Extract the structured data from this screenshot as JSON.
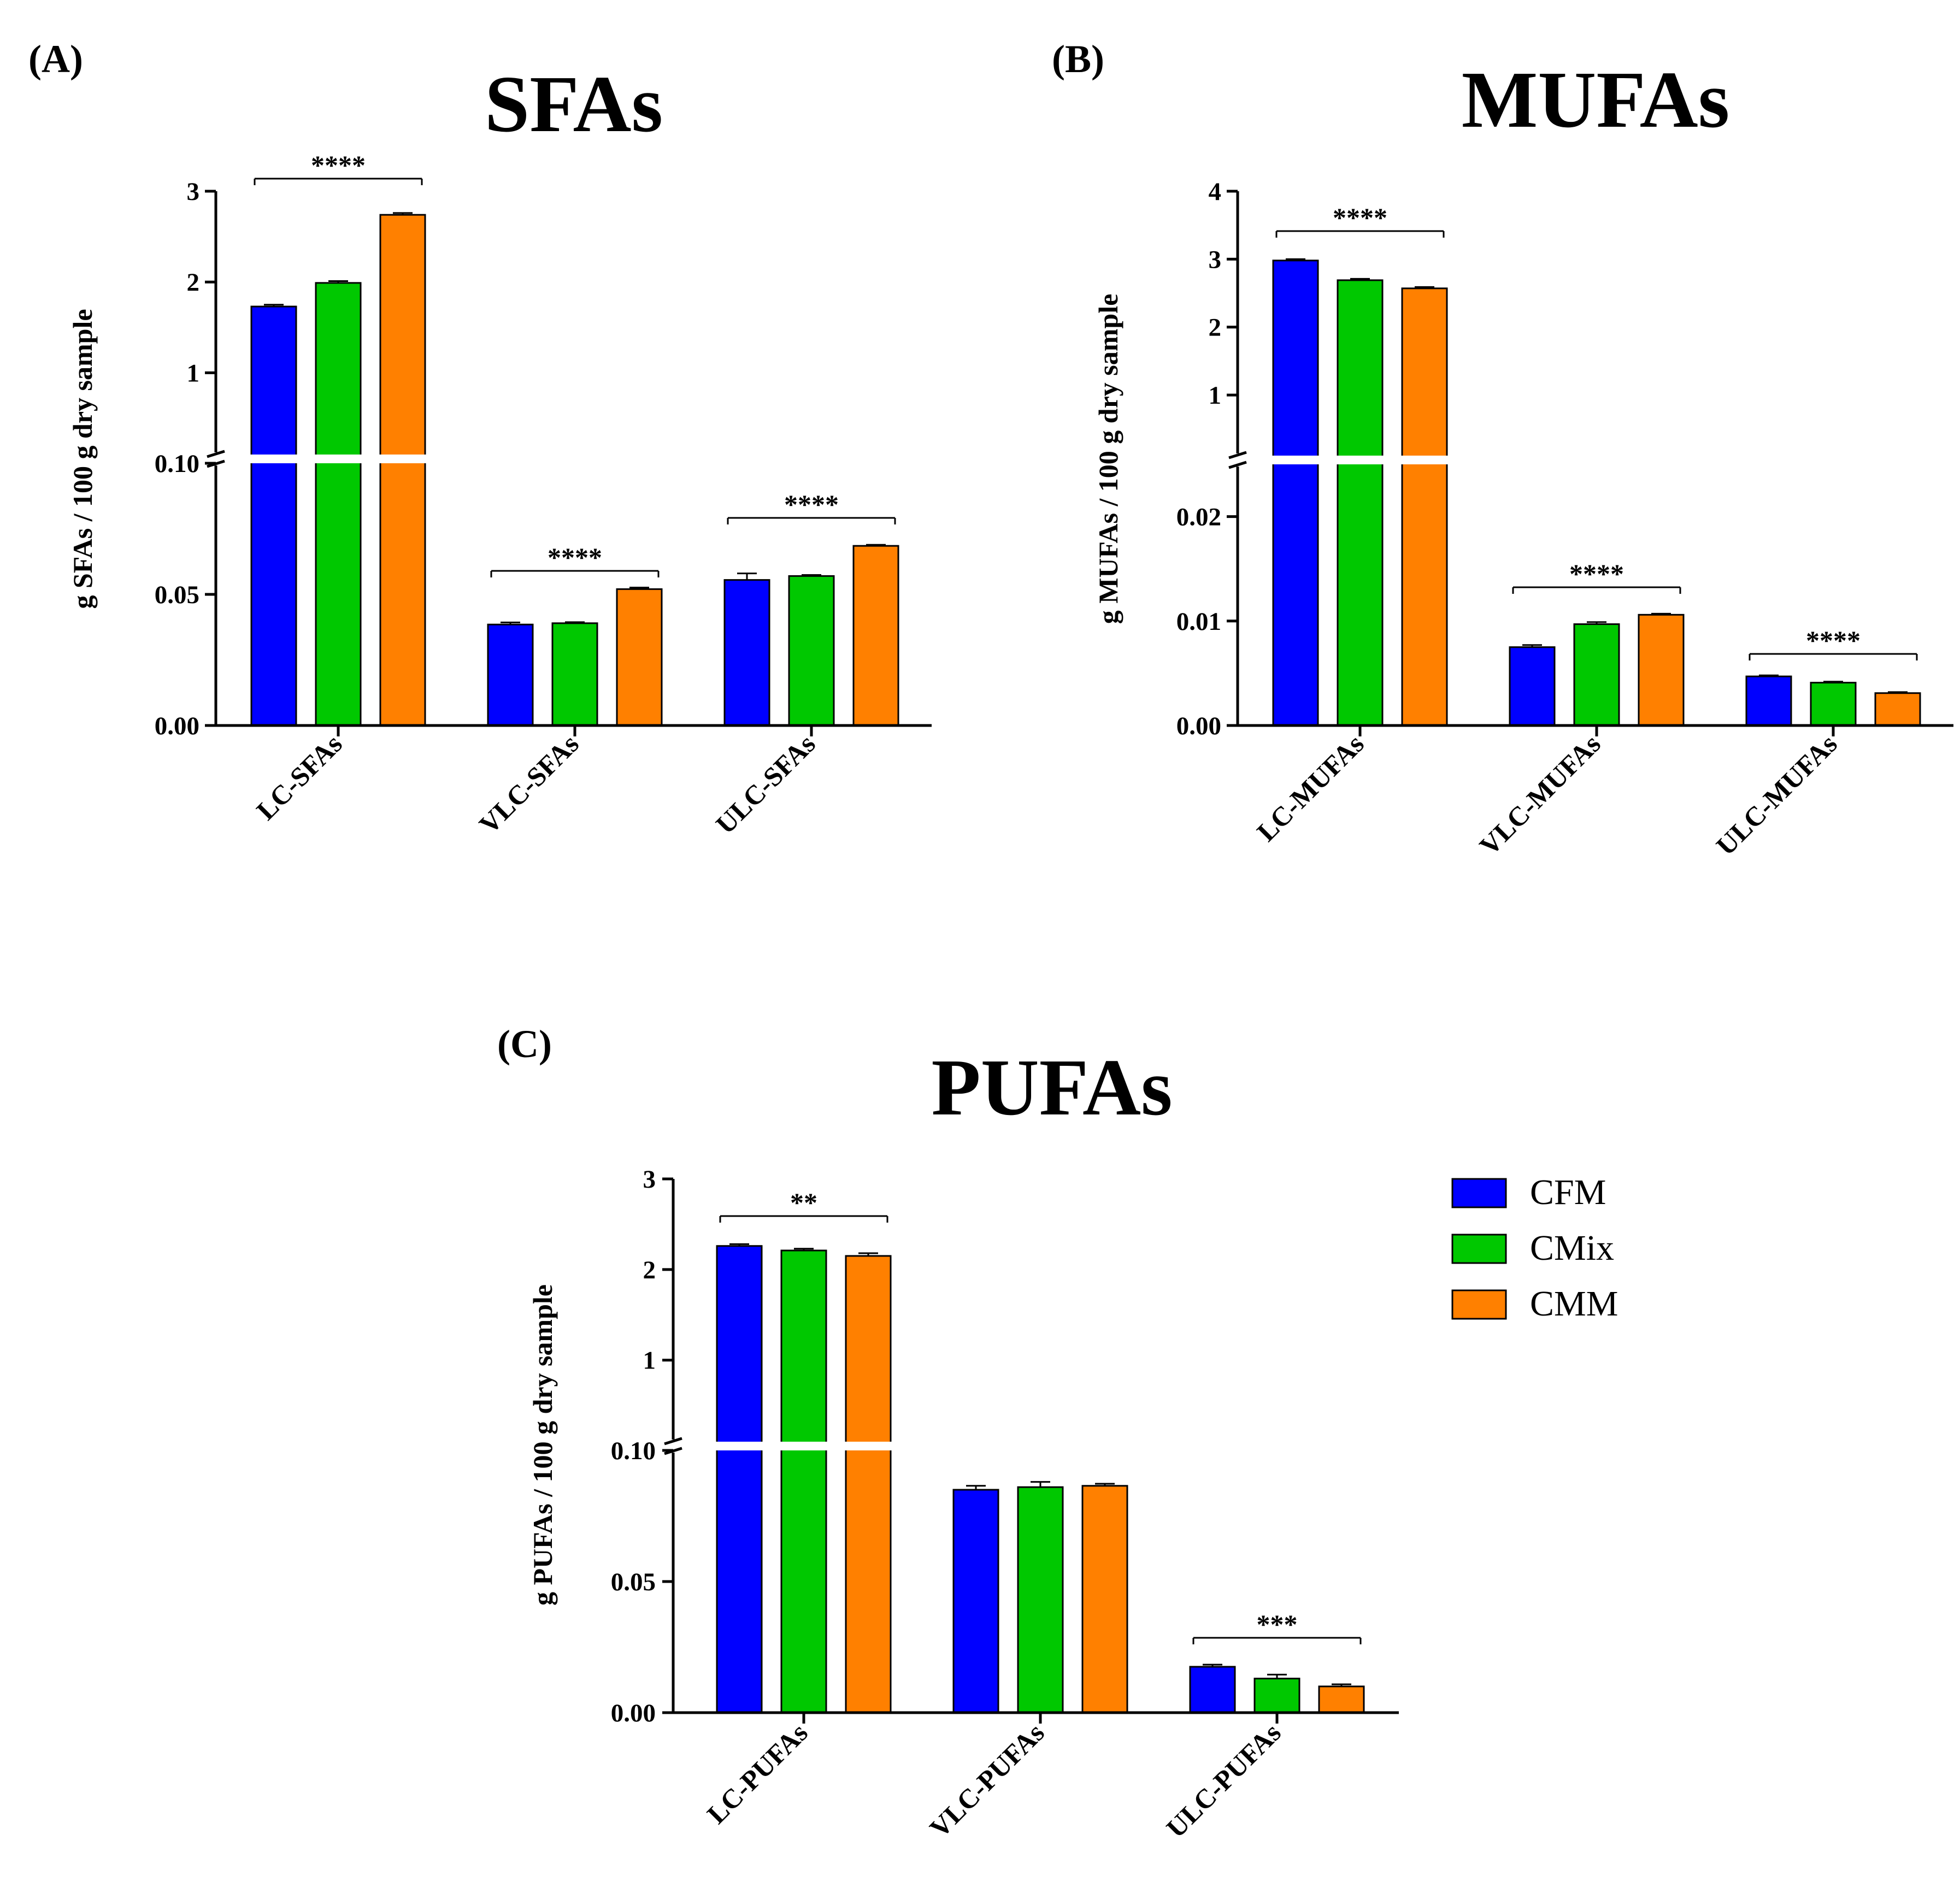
{
  "figure": {
    "legend": [
      {
        "name": "CFM",
        "color": "#0000ff"
      },
      {
        "name": "CMix",
        "color": "#00c800"
      },
      {
        "name": "CMM",
        "color": "#ff8000"
      }
    ]
  },
  "chart_data": [
    {
      "type": "bar",
      "panel": "(A)",
      "title": "SFAs",
      "ylabel": "g SFAs / 100 g dry sample",
      "xlabel": "",
      "categories": [
        "LC-SFAs",
        "VLC-SFAs",
        "ULC-SFAs"
      ],
      "series": [
        {
          "name": "CFM",
          "values": [
            1.73,
            0.0385,
            0.0555
          ],
          "errors": [
            0.02,
            0.0008,
            0.0025
          ]
        },
        {
          "name": "CMix",
          "values": [
            1.99,
            0.039,
            0.057
          ],
          "errors": [
            0.02,
            0.0004,
            0.0004
          ]
        },
        {
          "name": "CMM",
          "values": [
            2.74,
            0.052,
            0.0685
          ],
          "errors": [
            0.02,
            0.0006,
            0.0004
          ]
        }
      ],
      "axis_break": {
        "low_range": [
          0,
          0.1
        ],
        "high_range": [
          0.1,
          3
        ]
      },
      "yticks_low": [
        "0.00",
        "0.05",
        "0.10"
      ],
      "yticks_high": [
        "1",
        "2",
        "3"
      ],
      "significance": [
        "****",
        "****",
        "****"
      ]
    },
    {
      "type": "bar",
      "panel": "(B)",
      "title": "MUFAs",
      "ylabel": "g MUFAs / 100 g dry sample",
      "xlabel": "",
      "categories": [
        "LC-MUFAs",
        "VLC-MUFAs",
        "ULC-MUFAs"
      ],
      "series": [
        {
          "name": "CFM",
          "values": [
            2.98,
            0.0075,
            0.0047
          ],
          "errors": [
            0.02,
            0.0002,
            0.0001
          ]
        },
        {
          "name": "CMix",
          "values": [
            2.69,
            0.0097,
            0.0041
          ],
          "errors": [
            0.02,
            0.0002,
            0.0001
          ]
        },
        {
          "name": "CMM",
          "values": [
            2.57,
            0.0106,
            0.0031
          ],
          "errors": [
            0.02,
            0.0001,
            0.0001
          ]
        }
      ],
      "axis_break": {
        "low_range": [
          0,
          0.025
        ],
        "high_range": [
          0.1,
          4
        ]
      },
      "yticks_low": [
        "0.00",
        "0.01",
        "0.02"
      ],
      "yticks_high": [
        "1",
        "2",
        "3",
        "4"
      ],
      "significance": [
        "****",
        "****",
        "****"
      ]
    },
    {
      "type": "bar",
      "panel": "(C)",
      "title": "PUFAs",
      "ylabel": "g PUFAs / 100 g dry sample",
      "xlabel": "",
      "categories": [
        "LC-PUFAs",
        "VLC-PUFAs",
        "ULC-PUFAs"
      ],
      "series": [
        {
          "name": "CFM",
          "values": [
            2.26,
            0.085,
            0.0175
          ],
          "errors": [
            0.02,
            0.0015,
            0.0008
          ]
        },
        {
          "name": "CMix",
          "values": [
            2.21,
            0.086,
            0.013
          ],
          "errors": [
            0.02,
            0.002,
            0.0015
          ]
        },
        {
          "name": "CMM",
          "values": [
            2.15,
            0.0865,
            0.01
          ],
          "errors": [
            0.03,
            0.0008,
            0.0008
          ]
        }
      ],
      "axis_break": {
        "low_range": [
          0,
          0.1
        ],
        "high_range": [
          0.1,
          3
        ]
      },
      "yticks_low": [
        "0.00",
        "0.05",
        "0.10"
      ],
      "yticks_high": [
        "1",
        "2",
        "3"
      ],
      "significance": [
        "**",
        "",
        "***"
      ]
    }
  ]
}
